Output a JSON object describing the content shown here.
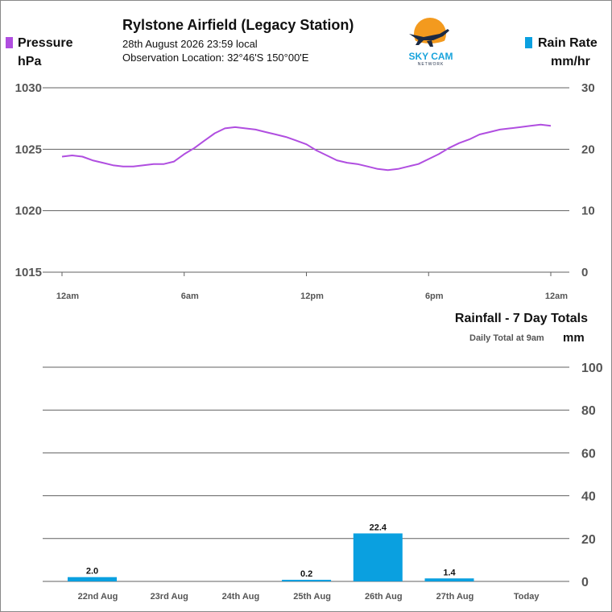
{
  "header": {
    "title": "Rylstone Airfield (Legacy Station)",
    "datetime": "28th August 2026  23:59 local",
    "location": "Observation Location: 32°46'S 150°00'E"
  },
  "logo": {
    "name": "sky-cam-logo",
    "text": "SKY CAM",
    "subtext": "NETWORK"
  },
  "legend_left": {
    "label": "Pressure",
    "unit": "hPa",
    "color": "#b04ee0"
  },
  "legend_right": {
    "label": "Rain Rate",
    "unit": "mm/hr",
    "color": "#0aa0e0"
  },
  "colors": {
    "pressure": "#b04ee0",
    "rain": "#0aa0e0",
    "grid": "#606060",
    "axis_text": "#555555"
  },
  "chart_data": [
    {
      "type": "line",
      "series": [
        {
          "name": "Pressure",
          "unit": "hPa",
          "x": [
            0,
            0.5,
            1,
            1.5,
            2,
            2.5,
            3,
            3.5,
            4,
            4.5,
            5,
            5.5,
            6,
            6.5,
            7,
            7.5,
            8,
            8.5,
            9,
            9.5,
            10,
            10.5,
            11,
            11.5,
            12,
            12.5,
            13,
            13.5,
            14,
            14.5,
            15,
            15.5,
            16,
            16.5,
            17,
            17.5,
            18,
            18.5,
            19,
            19.5,
            20,
            20.5,
            21,
            21.5,
            22,
            22.5,
            23,
            23.5,
            24
          ],
          "values": [
            1024.4,
            1024.5,
            1024.4,
            1024.1,
            1023.9,
            1023.7,
            1023.6,
            1023.6,
            1023.7,
            1023.8,
            1023.8,
            1024.0,
            1024.6,
            1025.1,
            1025.7,
            1026.3,
            1026.7,
            1026.8,
            1026.7,
            1026.6,
            1026.4,
            1026.2,
            1026.0,
            1025.7,
            1025.4,
            1024.9,
            1024.5,
            1024.1,
            1023.9,
            1023.8,
            1023.6,
            1023.4,
            1023.3,
            1023.4,
            1023.6,
            1023.8,
            1024.2,
            1024.6,
            1025.1,
            1025.5,
            1025.8,
            1026.2,
            1026.4,
            1026.6,
            1026.7,
            1026.8,
            1026.9,
            1027.0,
            1026.9
          ]
        }
      ],
      "x_ticks": [
        "12am",
        "6am",
        "12pm",
        "6pm",
        "12am"
      ],
      "y_left": {
        "label": "hPa",
        "ticks": [
          1030,
          1025,
          1020,
          1015
        ],
        "range": [
          1015,
          1030
        ]
      },
      "y_right": {
        "label": "mm/hr",
        "ticks": [
          30,
          20,
          10,
          0
        ],
        "range": [
          0,
          30
        ]
      },
      "grid": true
    },
    {
      "type": "bar",
      "title": "Rainfall - 7 Day Totals",
      "subtitle": "Daily Total at 9am",
      "unit": "mm",
      "categories": [
        "22nd Aug",
        "23rd Aug",
        "24th Aug",
        "25th Aug",
        "26th Aug",
        "27th Aug",
        "Today"
      ],
      "values": [
        2.0,
        0,
        0,
        0.2,
        22.4,
        1.4,
        0
      ],
      "labels": [
        "2.0",
        "",
        "",
        "0.2",
        "22.4",
        "1.4",
        ""
      ],
      "y_ticks": [
        100,
        80,
        60,
        40,
        20,
        0
      ],
      "ylim": [
        0,
        100
      ],
      "grid": true
    }
  ]
}
